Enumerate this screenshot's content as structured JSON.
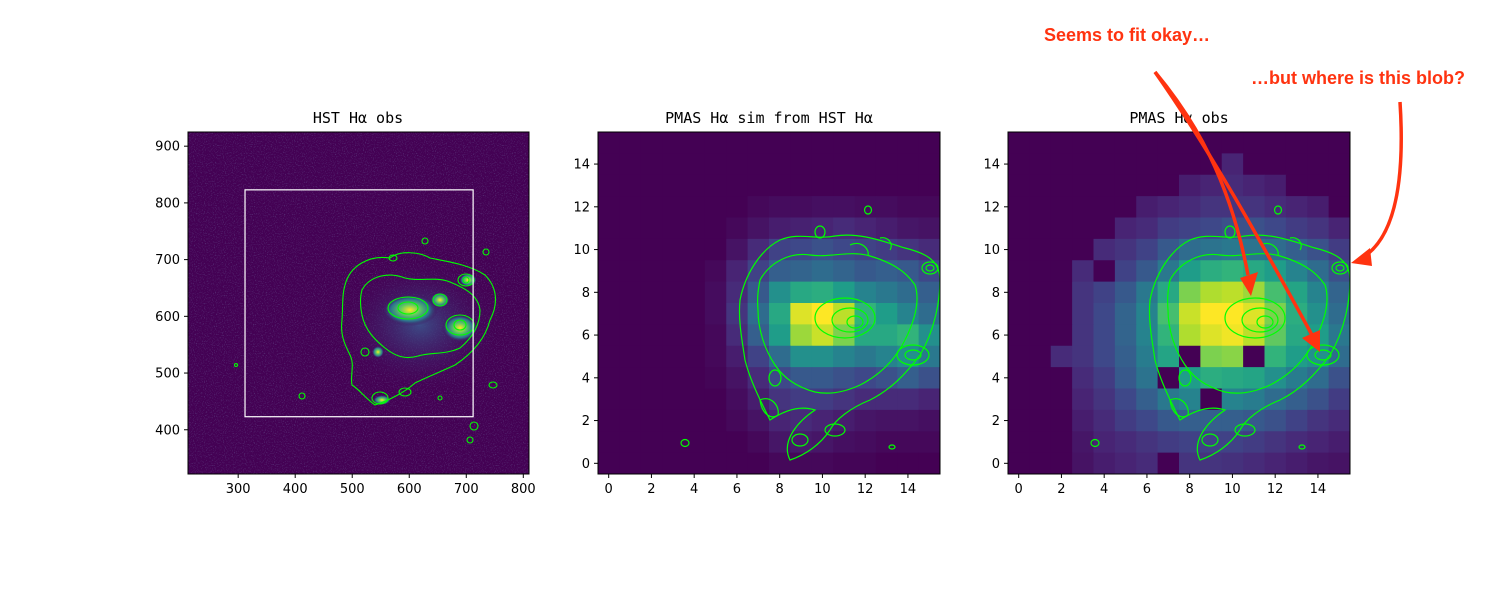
{
  "colors": {
    "viridis_low": "#440154",
    "viridis_high": "#fde725",
    "contour": "#00ff00",
    "annotation": "#ff3310",
    "box": "#ffffff"
  },
  "chart_data": [
    {
      "type": "heatmap",
      "title": "HST Hα obs",
      "xlim": [
        212,
        810
      ],
      "ylim": [
        322,
        925
      ],
      "xticks": [
        300,
        400,
        500,
        600,
        700,
        800
      ],
      "yticks": [
        400,
        500,
        600,
        700,
        800,
        900
      ],
      "colormap": "viridis",
      "overlay": "contours",
      "box": {
        "x0": 312,
        "x1": 712,
        "y0": 423,
        "y1": 823
      },
      "galaxy_center": [
        620,
        590
      ]
    },
    {
      "type": "heatmap",
      "title": "PMAS Hα sim from HST Hα",
      "xlim": [
        -0.5,
        15.5
      ],
      "ylim": [
        -0.5,
        15.5
      ],
      "xticks": [
        0,
        2,
        4,
        6,
        8,
        10,
        12,
        14
      ],
      "yticks": [
        0,
        2,
        4,
        6,
        8,
        10,
        12,
        14
      ],
      "colormap": "viridis",
      "overlay": "contours",
      "grid_rows_top_to_bottom": [
        [
          0,
          0,
          0,
          0,
          0,
          0,
          0,
          0,
          0,
          0,
          0,
          0,
          0,
          0,
          0,
          0
        ],
        [
          0,
          0,
          0,
          0,
          0,
          0,
          0,
          0,
          0,
          0,
          0,
          0,
          0,
          0,
          0,
          0
        ],
        [
          0,
          0,
          0,
          0,
          0,
          0,
          0,
          0,
          0,
          0,
          0,
          0,
          0,
          0,
          0,
          0
        ],
        [
          0,
          0,
          0,
          0,
          0,
          0,
          0,
          0.02,
          0.03,
          0.03,
          0.04,
          0.04,
          0.03,
          0.03,
          0.02,
          0.02
        ],
        [
          0,
          0,
          0,
          0,
          0,
          0,
          0.02,
          0.05,
          0.08,
          0.09,
          0.1,
          0.12,
          0.1,
          0.08,
          0.06,
          0.05
        ],
        [
          0,
          0,
          0,
          0,
          0,
          0,
          0.05,
          0.12,
          0.2,
          0.22,
          0.25,
          0.22,
          0.2,
          0.18,
          0.15,
          0.12
        ],
        [
          0,
          0,
          0,
          0,
          0,
          0.02,
          0.1,
          0.2,
          0.3,
          0.32,
          0.35,
          0.32,
          0.28,
          0.3,
          0.28,
          0.22
        ],
        [
          0,
          0,
          0,
          0,
          0,
          0.03,
          0.12,
          0.28,
          0.5,
          0.6,
          0.62,
          0.55,
          0.45,
          0.4,
          0.35,
          0.3
        ],
        [
          0,
          0,
          0,
          0,
          0,
          0.03,
          0.15,
          0.35,
          0.6,
          0.95,
          1.0,
          0.9,
          0.65,
          0.55,
          0.45,
          0.35
        ],
        [
          0,
          0,
          0,
          0,
          0,
          0.02,
          0.12,
          0.3,
          0.55,
          0.85,
          0.92,
          0.8,
          0.6,
          0.6,
          0.65,
          0.5
        ],
        [
          0,
          0,
          0,
          0,
          0,
          0.02,
          0.08,
          0.2,
          0.35,
          0.5,
          0.5,
          0.45,
          0.4,
          0.45,
          0.5,
          0.4
        ],
        [
          0,
          0,
          0,
          0,
          0,
          0.01,
          0.05,
          0.12,
          0.22,
          0.28,
          0.28,
          0.25,
          0.22,
          0.25,
          0.3,
          0.25
        ],
        [
          0,
          0,
          0,
          0,
          0,
          0,
          0.03,
          0.08,
          0.15,
          0.18,
          0.18,
          0.15,
          0.12,
          0.12,
          0.12,
          0.1
        ],
        [
          0,
          0,
          0,
          0,
          0,
          0,
          0.02,
          0.05,
          0.1,
          0.12,
          0.1,
          0.08,
          0.06,
          0.05,
          0.05,
          0.04
        ],
        [
          0,
          0,
          0,
          0,
          0,
          0,
          0,
          0.02,
          0.06,
          0.07,
          0.06,
          0.04,
          0.03,
          0.02,
          0.02,
          0.02
        ],
        [
          0,
          0,
          0,
          0,
          0,
          0,
          0,
          0,
          0.02,
          0.02,
          0.02,
          0.01,
          0.01,
          0,
          0,
          0
        ]
      ]
    },
    {
      "type": "heatmap",
      "title": "PMAS Hα obs",
      "xlim": [
        -0.5,
        15.5
      ],
      "ylim": [
        -0.5,
        15.5
      ],
      "xticks": [
        0,
        2,
        4,
        6,
        8,
        10,
        12,
        14
      ],
      "yticks": [
        0,
        2,
        4,
        6,
        8,
        10,
        12,
        14
      ],
      "colormap": "viridis",
      "overlay": "contours",
      "grid_rows_top_to_bottom": [
        [
          0,
          0,
          0,
          0,
          0,
          0,
          0,
          0,
          0,
          0,
          0,
          0,
          0,
          0,
          0,
          0
        ],
        [
          0,
          0,
          0,
          0,
          0,
          0,
          0,
          0,
          0,
          0,
          0.1,
          0,
          0,
          0,
          0,
          0
        ],
        [
          0,
          0,
          0,
          0,
          0,
          0,
          0,
          0,
          0.08,
          0.1,
          0.12,
          0.1,
          0.08,
          0,
          0,
          0
        ],
        [
          0,
          0,
          0,
          0,
          0,
          0,
          0.08,
          0.1,
          0.12,
          0.15,
          0.15,
          0.15,
          0.12,
          0.1,
          0.08,
          0
        ],
        [
          0,
          0,
          0,
          0,
          0,
          0.1,
          0.12,
          0.18,
          0.2,
          0.22,
          0.25,
          0.25,
          0.22,
          0.18,
          0.15,
          0.1
        ],
        [
          0,
          0,
          0,
          0,
          0.12,
          0.15,
          0.2,
          0.28,
          0.35,
          0.38,
          0.4,
          0.38,
          0.35,
          0.3,
          0.25,
          0.18
        ],
        [
          0,
          0,
          0,
          0.12,
          0,
          0.2,
          0.28,
          0.4,
          0.55,
          0.62,
          0.65,
          0.6,
          0.55,
          0.45,
          0.35,
          0.25
        ],
        [
          0,
          0,
          0,
          0.15,
          0.2,
          0.28,
          0.4,
          0.6,
          0.8,
          0.88,
          0.9,
          0.85,
          0.7,
          0.58,
          0.45,
          0.32
        ],
        [
          0,
          0,
          0,
          0.15,
          0.22,
          0.32,
          0.45,
          0.7,
          0.92,
          1.0,
          1.0,
          0.95,
          0.8,
          0.62,
          0.5,
          0.35
        ],
        [
          0,
          0,
          0,
          0.15,
          0.22,
          0.32,
          0.45,
          0.65,
          0.88,
          0.95,
          0.98,
          0.9,
          0.75,
          0.6,
          0.55,
          0.4
        ],
        [
          0,
          0,
          0.12,
          0.15,
          0.22,
          0.3,
          0.42,
          0.58,
          0,
          0.8,
          0.82,
          0,
          0.65,
          0.55,
          0.5,
          0.35
        ],
        [
          0,
          0,
          0,
          0.12,
          0.18,
          0.28,
          0.38,
          0,
          0.55,
          0.62,
          0.6,
          0.58,
          0.5,
          0.42,
          0.35,
          0.25
        ],
        [
          0,
          0,
          0,
          0.1,
          0.15,
          0.22,
          0.3,
          0.4,
          0.45,
          0,
          0.45,
          0.42,
          0.35,
          0.3,
          0.25,
          0.18
        ],
        [
          0,
          0,
          0,
          0.08,
          0.12,
          0.18,
          0.22,
          0.28,
          0.3,
          0.3,
          0.3,
          0.28,
          0.25,
          0.2,
          0.15,
          0.12
        ],
        [
          0,
          0,
          0,
          0.06,
          0.1,
          0.12,
          0.15,
          0.18,
          0.2,
          0.2,
          0.2,
          0.18,
          0.15,
          0.12,
          0.1,
          0.08
        ],
        [
          0,
          0,
          0,
          0.05,
          0.08,
          0.1,
          0.12,
          0,
          0.15,
          0.15,
          0.14,
          0.12,
          0.1,
          0.08,
          0.06,
          0.05
        ]
      ]
    }
  ],
  "annotations": [
    {
      "text": "Seems to fit okay…"
    },
    {
      "text": "…but where is this blob?"
    }
  ]
}
